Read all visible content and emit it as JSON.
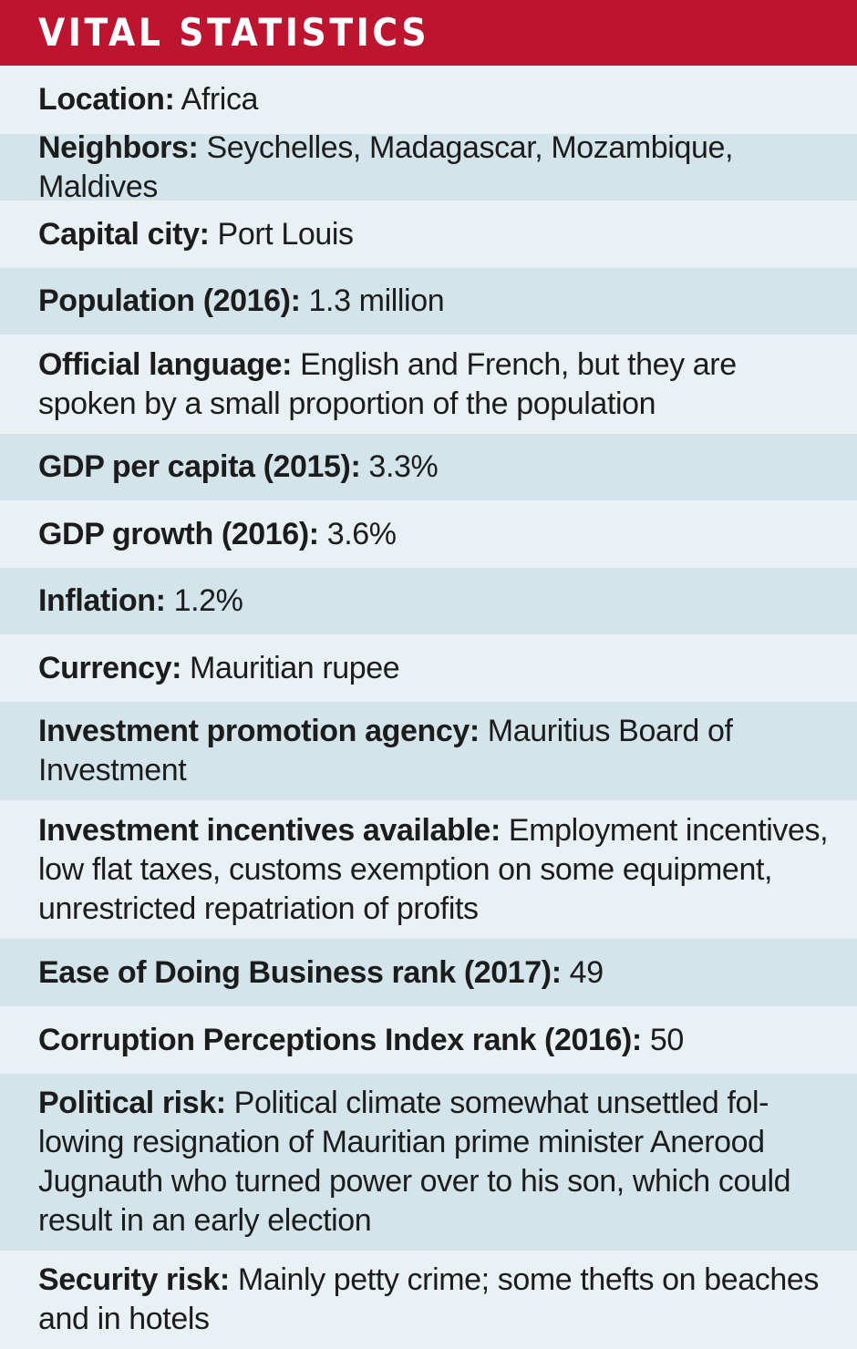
{
  "header": {
    "title": "VITAL STATISTICS",
    "background_color": "#bd1530"
  },
  "colors": {
    "row_light": "#e9f1f4",
    "row_dark": "#d3e4ea",
    "text": "#1c1c1c"
  },
  "rows": [
    {
      "label": "Location:",
      "value": " Africa"
    },
    {
      "label": "Neighbors:",
      "value": " Seychelles, Madagascar, Mozambique, Maldives"
    },
    {
      "label": "Capital city:",
      "value": " Port Louis"
    },
    {
      "label": "Population (2016):",
      "value": " 1.3 million"
    },
    {
      "label": "Official language:",
      "value": " English and French, but they are spoken by a small proportion of the population"
    },
    {
      "label": "GDP per capita (2015):",
      "value": " 3.3%"
    },
    {
      "label": "GDP growth (2016):",
      "value": " 3.6%"
    },
    {
      "label": "Inflation:",
      "value": " 1.2%"
    },
    {
      "label": "Currency:",
      "value": " Mauritian rupee"
    },
    {
      "label": "Investment promotion agency:",
      "value": " Mauritius Board of Investment"
    },
    {
      "label": "Investment incentives available:",
      "value": " Employment incentives, low flat taxes, customs exemption on some equipment, unrestricted repatriation of profits"
    },
    {
      "label": "Ease of Doing Business rank (2017):",
      "value": " 49"
    },
    {
      "label": "Corruption Perceptions Index rank (2016):",
      "value": " 50"
    },
    {
      "label": "Political risk:",
      "value": " Political climate somewhat unsettled fol-lowing resignation of Mauritian prime minister Anerood Jugnauth who turned power over to his son, which could result in an early election"
    },
    {
      "label": "Security risk:",
      "value": " Mainly petty crime; some thefts on beaches and in hotels"
    }
  ]
}
